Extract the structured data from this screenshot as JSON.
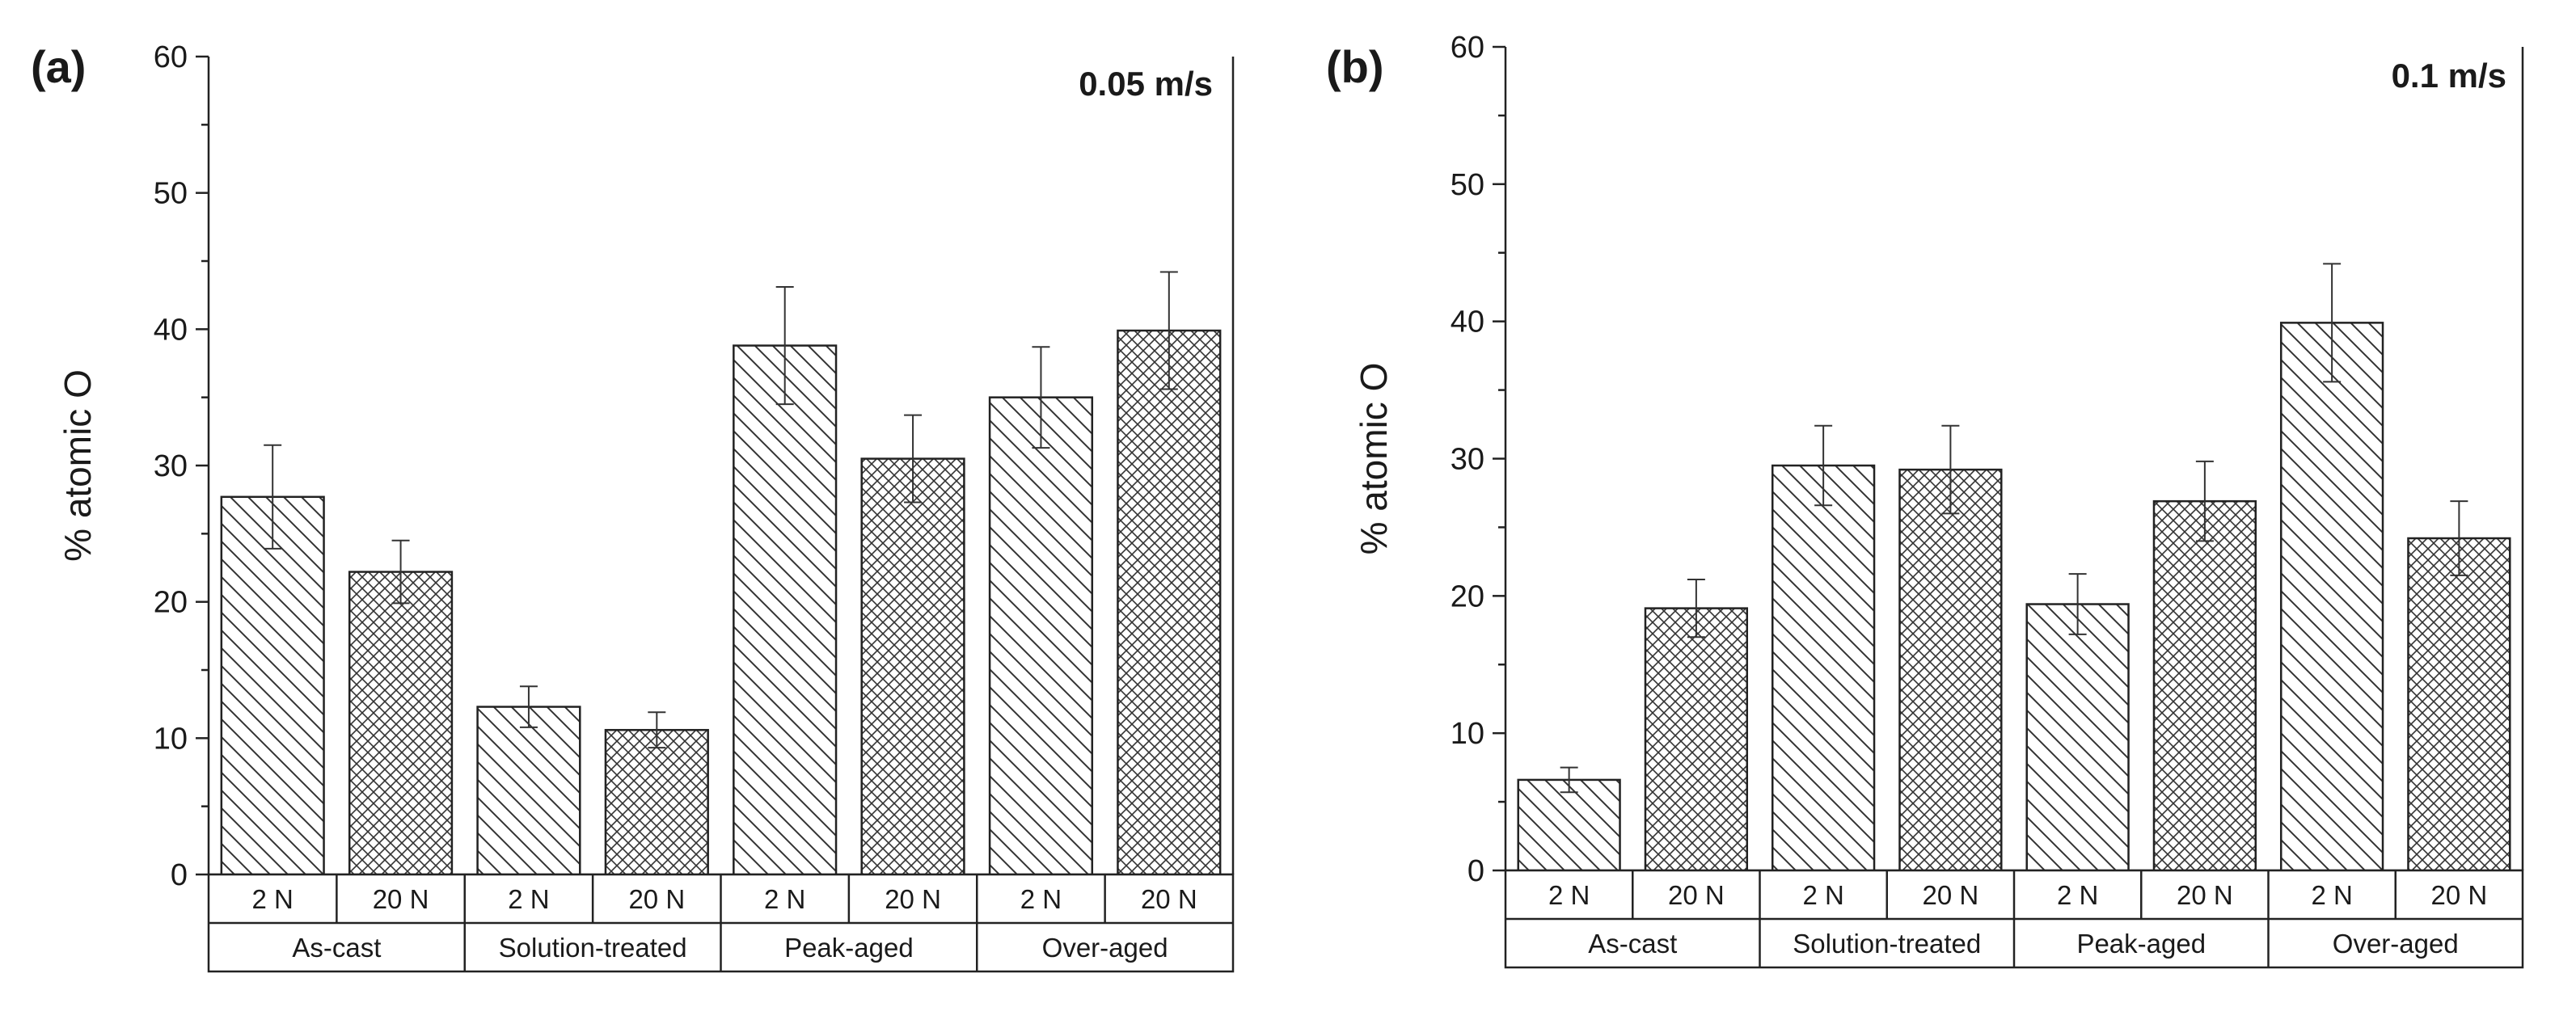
{
  "chart_data": [
    {
      "type": "bar",
      "panel": "(a)",
      "title": "0.05 m/s",
      "xlabel": "",
      "ylabel": "% atomic O",
      "ylim": [
        0,
        60
      ],
      "yticks": [
        0,
        10,
        20,
        30,
        40,
        50,
        60
      ],
      "groups": [
        "As-cast",
        "Solution-treated",
        "Peak-aged",
        "Over-aged"
      ],
      "loads": [
        "2 N",
        "20 N"
      ],
      "series": [
        {
          "name": "2 N",
          "pattern": "diagonal-hatch",
          "values": [
            27.7,
            12.3,
            38.8,
            35.0
          ],
          "errors": [
            3.8,
            1.5,
            4.3,
            3.7
          ]
        },
        {
          "name": "20 N",
          "pattern": "cross-hatch",
          "values": [
            22.2,
            10.6,
            30.5,
            39.9
          ],
          "errors": [
            2.3,
            1.3,
            3.2,
            4.3
          ]
        }
      ]
    },
    {
      "type": "bar",
      "panel": "(b)",
      "title": "0.1 m/s",
      "xlabel": "",
      "ylabel": "% atomic O",
      "ylim": [
        0,
        60
      ],
      "yticks": [
        0,
        10,
        20,
        30,
        40,
        50,
        60
      ],
      "groups": [
        "As-cast",
        "Solution-treated",
        "Peak-aged",
        "Over-aged"
      ],
      "loads": [
        "2 N",
        "20 N"
      ],
      "series": [
        {
          "name": "2 N",
          "pattern": "diagonal-hatch",
          "values": [
            6.6,
            29.5,
            19.4,
            39.9
          ],
          "errors": [
            0.9,
            2.9,
            2.2,
            4.3
          ]
        },
        {
          "name": "20 N",
          "pattern": "cross-hatch",
          "values": [
            19.1,
            29.2,
            26.9,
            24.2
          ],
          "errors": [
            2.1,
            3.2,
            2.9,
            2.7
          ]
        }
      ]
    }
  ],
  "colors": {
    "ink": "#222222",
    "bar_fill": "#ffffff",
    "hatch": "#333333"
  }
}
